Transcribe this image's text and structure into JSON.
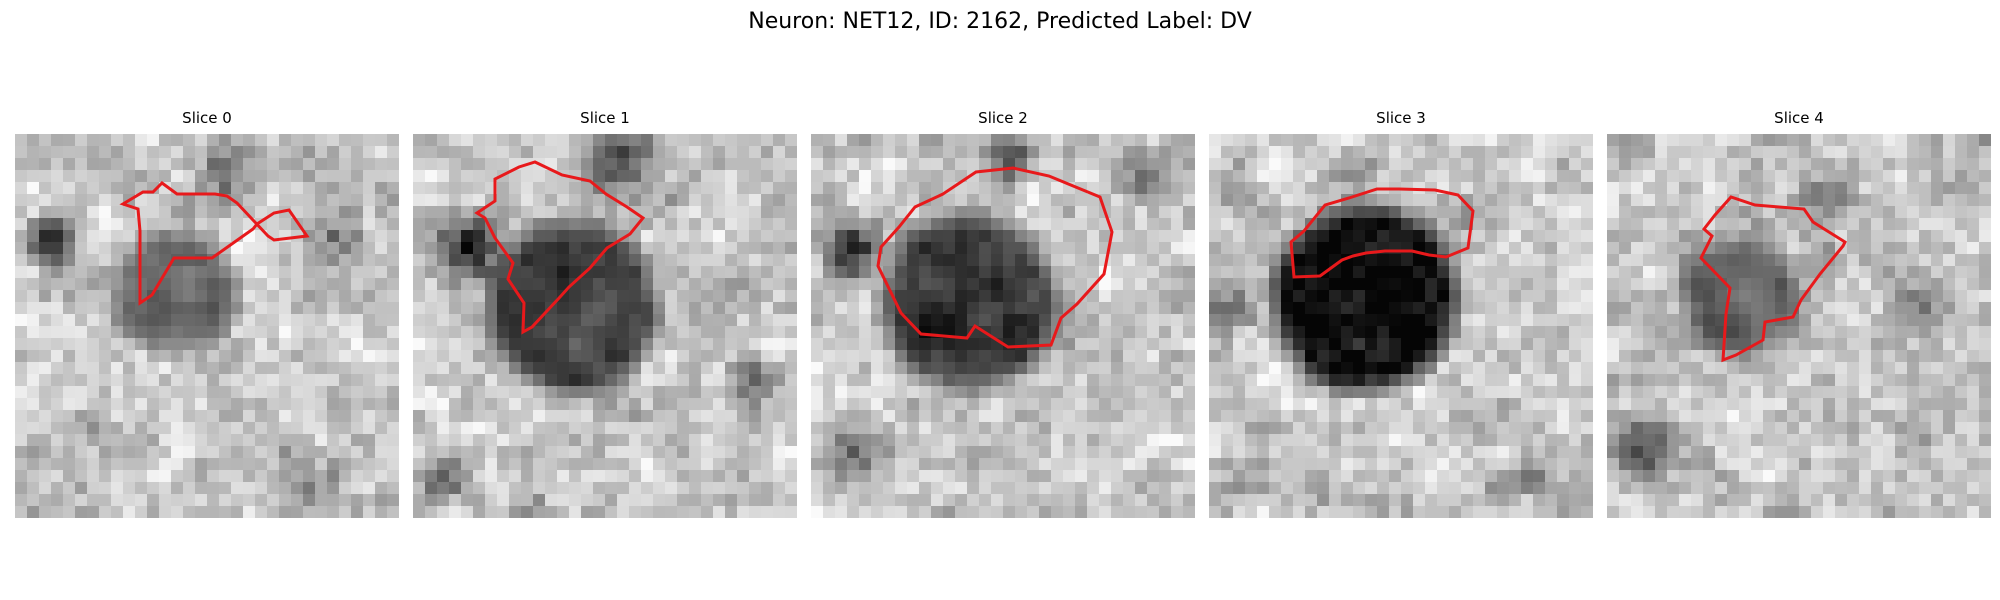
{
  "figure": {
    "title": "Neuron: NET12, ID: 2162, Predicted Label: DV",
    "contour_color": "#e8191b",
    "colormap": "grayscale"
  },
  "slices": [
    {
      "title": "Slice 0"
    },
    {
      "title": "Slice 1"
    },
    {
      "title": "Slice 2"
    },
    {
      "title": "Slice 3"
    },
    {
      "title": "Slice 4"
    }
  ]
}
